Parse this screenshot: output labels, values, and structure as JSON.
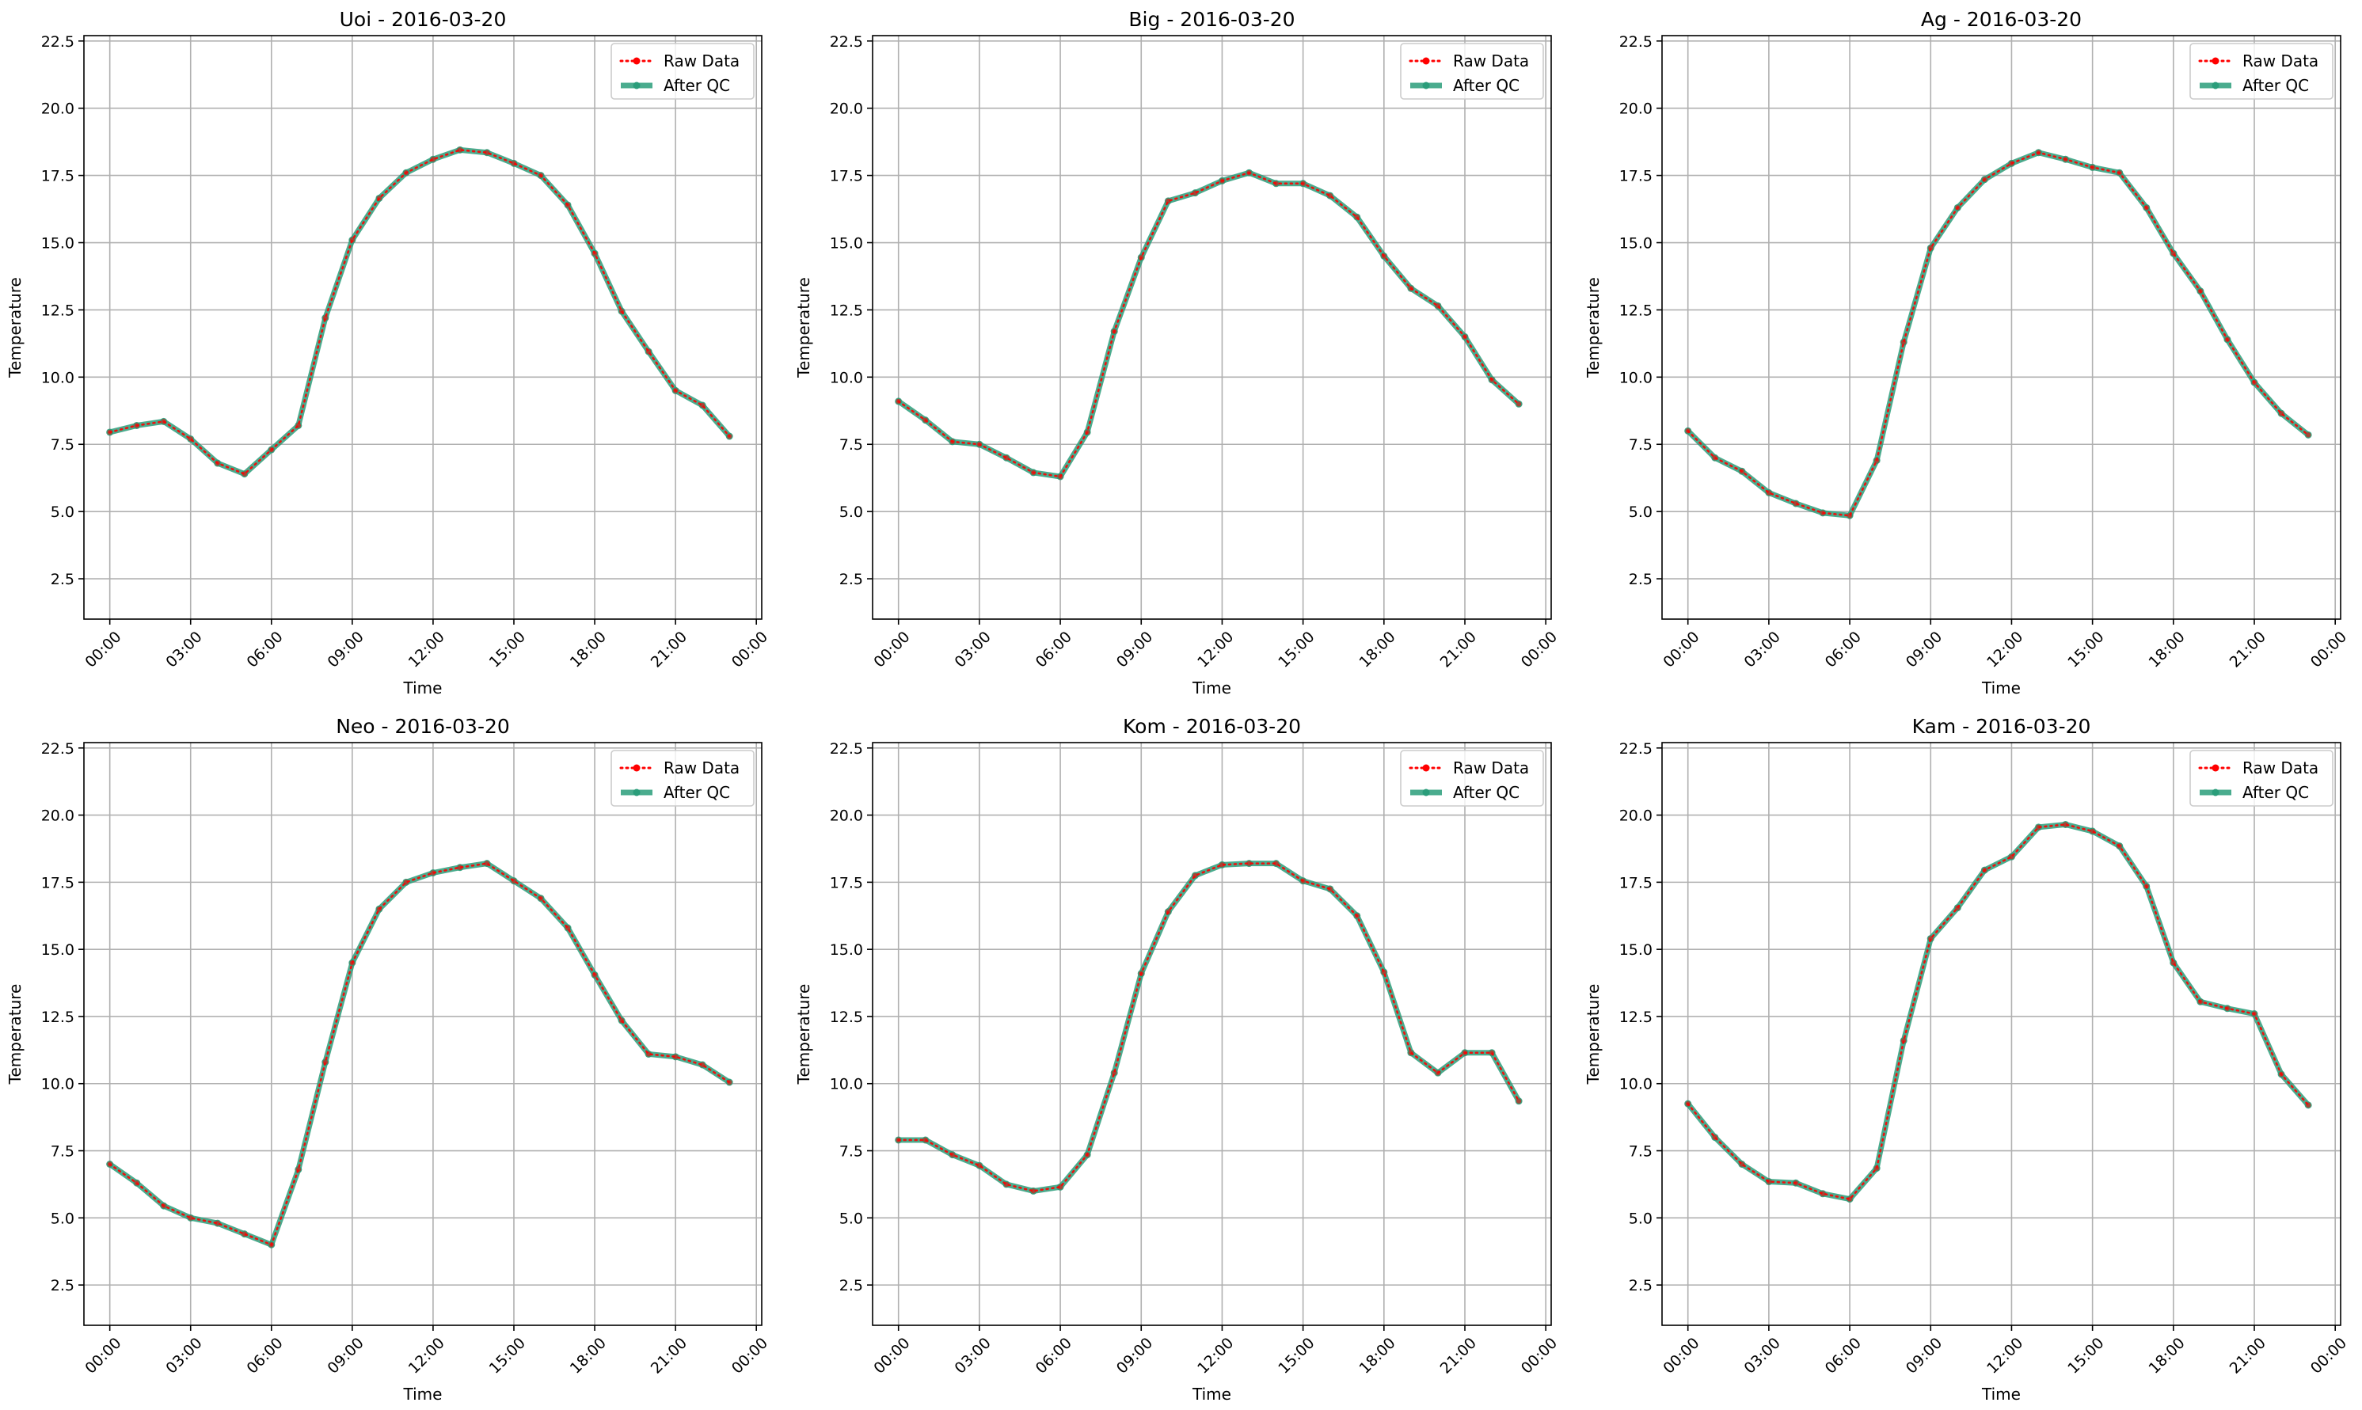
{
  "chart_data": [
    {
      "type": "line",
      "title": "Uoi - 2016-03-20",
      "xlabel": "Time",
      "ylabel": "Temperature",
      "x": [
        "00:00",
        "01:00",
        "02:00",
        "03:00",
        "04:00",
        "05:00",
        "06:00",
        "07:00",
        "08:00",
        "09:00",
        "10:00",
        "11:00",
        "12:00",
        "13:00",
        "14:00",
        "15:00",
        "16:00",
        "17:00",
        "18:00",
        "19:00",
        "20:00",
        "21:00",
        "22:00",
        "23:00"
      ],
      "xticks": [
        "00:00",
        "03:00",
        "06:00",
        "09:00",
        "12:00",
        "15:00",
        "18:00",
        "21:00",
        "00:00"
      ],
      "yticks": [
        "2.5",
        "5.0",
        "7.5",
        "10.0",
        "12.5",
        "15.0",
        "17.5",
        "20.0",
        "22.5"
      ],
      "ylim": [
        1.0,
        22.7
      ],
      "grid": true,
      "legend_position": "top-right",
      "series": [
        {
          "name": "Raw Data",
          "color": "#ff0000",
          "style": "dotted",
          "values": [
            7.95,
            8.2,
            8.35,
            7.7,
            6.8,
            6.4,
            7.3,
            8.2,
            12.2,
            15.1,
            16.65,
            17.6,
            18.1,
            18.45,
            18.35,
            17.95,
            17.5,
            16.4,
            14.6,
            12.45,
            10.95,
            9.5,
            8.95,
            7.8
          ]
        },
        {
          "name": "After QC",
          "color": "#2a9d7a",
          "style": "solid",
          "values": [
            7.95,
            8.2,
            8.35,
            7.7,
            6.8,
            6.4,
            7.3,
            8.2,
            12.2,
            15.1,
            16.65,
            17.6,
            18.1,
            18.45,
            18.35,
            17.95,
            17.5,
            16.4,
            14.6,
            12.45,
            10.95,
            9.5,
            8.95,
            7.8
          ]
        }
      ]
    },
    {
      "type": "line",
      "title": "Big - 2016-03-20",
      "xlabel": "Time",
      "ylabel": "Temperature",
      "x": [
        "00:00",
        "01:00",
        "02:00",
        "03:00",
        "04:00",
        "05:00",
        "06:00",
        "07:00",
        "08:00",
        "09:00",
        "10:00",
        "11:00",
        "12:00",
        "13:00",
        "14:00",
        "15:00",
        "16:00",
        "17:00",
        "18:00",
        "19:00",
        "20:00",
        "21:00",
        "22:00",
        "23:00"
      ],
      "xticks": [
        "00:00",
        "03:00",
        "06:00",
        "09:00",
        "12:00",
        "15:00",
        "18:00",
        "21:00",
        "00:00"
      ],
      "yticks": [
        "2.5",
        "5.0",
        "7.5",
        "10.0",
        "12.5",
        "15.0",
        "17.5",
        "20.0",
        "22.5"
      ],
      "ylim": [
        1.0,
        22.7
      ],
      "grid": true,
      "legend_position": "top-right",
      "series": [
        {
          "name": "Raw Data",
          "color": "#ff0000",
          "style": "dotted",
          "values": [
            9.1,
            8.4,
            7.6,
            7.5,
            7.0,
            6.45,
            6.3,
            7.95,
            11.7,
            14.45,
            16.55,
            16.85,
            17.3,
            17.6,
            17.2,
            17.2,
            16.75,
            15.95,
            14.5,
            13.3,
            12.65,
            11.5,
            9.9,
            9.0
          ]
        },
        {
          "name": "After QC",
          "color": "#2a9d7a",
          "style": "solid",
          "values": [
            9.1,
            8.4,
            7.6,
            7.5,
            7.0,
            6.45,
            6.3,
            7.95,
            11.7,
            14.45,
            16.55,
            16.85,
            17.3,
            17.6,
            17.2,
            17.2,
            16.75,
            15.95,
            14.5,
            13.3,
            12.65,
            11.5,
            9.9,
            9.0
          ]
        }
      ]
    },
    {
      "type": "line",
      "title": "Ag - 2016-03-20",
      "xlabel": "Time",
      "ylabel": "Temperature",
      "x": [
        "00:00",
        "01:00",
        "02:00",
        "03:00",
        "04:00",
        "05:00",
        "06:00",
        "07:00",
        "08:00",
        "09:00",
        "10:00",
        "11:00",
        "12:00",
        "13:00",
        "14:00",
        "15:00",
        "16:00",
        "17:00",
        "18:00",
        "19:00",
        "20:00",
        "21:00",
        "22:00",
        "23:00"
      ],
      "xticks": [
        "00:00",
        "03:00",
        "06:00",
        "09:00",
        "12:00",
        "15:00",
        "18:00",
        "21:00",
        "00:00"
      ],
      "yticks": [
        "2.5",
        "5.0",
        "7.5",
        "10.0",
        "12.5",
        "15.0",
        "17.5",
        "20.0",
        "22.5"
      ],
      "ylim": [
        1.0,
        22.7
      ],
      "grid": true,
      "legend_position": "top-right",
      "series": [
        {
          "name": "Raw Data",
          "color": "#ff0000",
          "style": "dotted",
          "values": [
            8.0,
            7.0,
            6.5,
            5.7,
            5.3,
            4.95,
            4.85,
            6.9,
            11.3,
            14.8,
            16.3,
            17.35,
            17.95,
            18.35,
            18.1,
            17.8,
            17.6,
            16.3,
            14.6,
            13.2,
            11.4,
            9.8,
            8.65,
            7.85
          ]
        },
        {
          "name": "After QC",
          "color": "#2a9d7a",
          "style": "solid",
          "values": [
            8.0,
            7.0,
            6.5,
            5.7,
            5.3,
            4.95,
            4.85,
            6.9,
            11.3,
            14.8,
            16.3,
            17.35,
            17.95,
            18.35,
            18.1,
            17.8,
            17.6,
            16.3,
            14.6,
            13.2,
            11.4,
            9.8,
            8.65,
            7.85
          ]
        }
      ]
    },
    {
      "type": "line",
      "title": "Neo - 2016-03-20",
      "xlabel": "Time",
      "ylabel": "Temperature",
      "x": [
        "00:00",
        "01:00",
        "02:00",
        "03:00",
        "04:00",
        "05:00",
        "06:00",
        "07:00",
        "08:00",
        "09:00",
        "10:00",
        "11:00",
        "12:00",
        "13:00",
        "14:00",
        "15:00",
        "16:00",
        "17:00",
        "18:00",
        "19:00",
        "20:00",
        "21:00",
        "22:00",
        "23:00"
      ],
      "xticks": [
        "00:00",
        "03:00",
        "06:00",
        "09:00",
        "12:00",
        "15:00",
        "18:00",
        "21:00",
        "00:00"
      ],
      "yticks": [
        "2.5",
        "5.0",
        "7.5",
        "10.0",
        "12.5",
        "15.0",
        "17.5",
        "20.0",
        "22.5"
      ],
      "ylim": [
        1.0,
        22.7
      ],
      "grid": true,
      "legend_position": "top-right",
      "series": [
        {
          "name": "Raw Data",
          "color": "#ff0000",
          "style": "dotted",
          "values": [
            7.0,
            6.3,
            5.45,
            5.0,
            4.8,
            4.4,
            4.0,
            6.8,
            10.8,
            14.5,
            16.5,
            17.5,
            17.85,
            18.05,
            18.2,
            17.55,
            16.9,
            15.8,
            14.05,
            12.35,
            11.1,
            11.0,
            10.7,
            10.05
          ]
        },
        {
          "name": "After QC",
          "color": "#2a9d7a",
          "style": "solid",
          "values": [
            7.0,
            6.3,
            5.45,
            5.0,
            4.8,
            4.4,
            4.0,
            6.8,
            10.8,
            14.5,
            16.5,
            17.5,
            17.85,
            18.05,
            18.2,
            17.55,
            16.9,
            15.8,
            14.05,
            12.35,
            11.1,
            11.0,
            10.7,
            10.05
          ]
        }
      ]
    },
    {
      "type": "line",
      "title": "Kom - 2016-03-20",
      "xlabel": "Time",
      "ylabel": "Temperature",
      "x": [
        "00:00",
        "01:00",
        "02:00",
        "03:00",
        "04:00",
        "05:00",
        "06:00",
        "07:00",
        "08:00",
        "09:00",
        "10:00",
        "11:00",
        "12:00",
        "13:00",
        "14:00",
        "15:00",
        "16:00",
        "17:00",
        "18:00",
        "19:00",
        "20:00",
        "21:00",
        "22:00",
        "23:00"
      ],
      "xticks": [
        "00:00",
        "03:00",
        "06:00",
        "09:00",
        "12:00",
        "15:00",
        "18:00",
        "21:00",
        "00:00"
      ],
      "yticks": [
        "2.5",
        "5.0",
        "7.5",
        "10.0",
        "12.5",
        "15.0",
        "17.5",
        "20.0",
        "22.5"
      ],
      "ylim": [
        1.0,
        22.7
      ],
      "grid": true,
      "legend_position": "top-right",
      "series": [
        {
          "name": "Raw Data",
          "color": "#ff0000",
          "style": "dotted",
          "values": [
            7.9,
            7.9,
            7.35,
            6.95,
            6.25,
            6.0,
            6.15,
            7.35,
            10.4,
            14.1,
            16.4,
            17.75,
            18.15,
            18.2,
            18.2,
            17.55,
            17.25,
            16.25,
            14.15,
            11.15,
            10.4,
            11.15,
            11.15,
            9.35
          ]
        },
        {
          "name": "After QC",
          "color": "#2a9d7a",
          "style": "solid",
          "values": [
            7.9,
            7.9,
            7.35,
            6.95,
            6.25,
            6.0,
            6.15,
            7.35,
            10.4,
            14.1,
            16.4,
            17.75,
            18.15,
            18.2,
            18.2,
            17.55,
            17.25,
            16.25,
            14.15,
            11.15,
            10.4,
            11.15,
            11.15,
            9.35
          ]
        }
      ]
    },
    {
      "type": "line",
      "title": "Kam - 2016-03-20",
      "xlabel": "Time",
      "ylabel": "Temperature",
      "x": [
        "00:00",
        "01:00",
        "02:00",
        "03:00",
        "04:00",
        "05:00",
        "06:00",
        "07:00",
        "08:00",
        "09:00",
        "10:00",
        "11:00",
        "12:00",
        "13:00",
        "14:00",
        "15:00",
        "16:00",
        "17:00",
        "18:00",
        "19:00",
        "20:00",
        "21:00",
        "22:00",
        "23:00"
      ],
      "xticks": [
        "00:00",
        "03:00",
        "06:00",
        "09:00",
        "12:00",
        "15:00",
        "18:00",
        "21:00",
        "00:00"
      ],
      "yticks": [
        "2.5",
        "5.0",
        "7.5",
        "10.0",
        "12.5",
        "15.0",
        "17.5",
        "20.0",
        "22.5"
      ],
      "ylim": [
        1.0,
        22.7
      ],
      "grid": true,
      "legend_position": "top-right",
      "series": [
        {
          "name": "Raw Data",
          "color": "#ff0000",
          "style": "dotted",
          "values": [
            9.25,
            8.0,
            7.0,
            6.35,
            6.3,
            5.9,
            5.7,
            6.85,
            11.6,
            15.4,
            16.55,
            17.95,
            18.45,
            19.55,
            19.65,
            19.4,
            18.85,
            17.35,
            14.5,
            13.05,
            12.8,
            12.6,
            10.35,
            9.2
          ]
        },
        {
          "name": "After QC",
          "color": "#2a9d7a",
          "style": "solid",
          "values": [
            9.25,
            8.0,
            7.0,
            6.35,
            6.3,
            5.9,
            5.7,
            6.85,
            11.6,
            15.4,
            16.55,
            17.95,
            18.45,
            19.55,
            19.65,
            19.4,
            18.85,
            17.35,
            14.5,
            13.05,
            12.8,
            12.6,
            10.35,
            9.2
          ]
        }
      ]
    }
  ]
}
